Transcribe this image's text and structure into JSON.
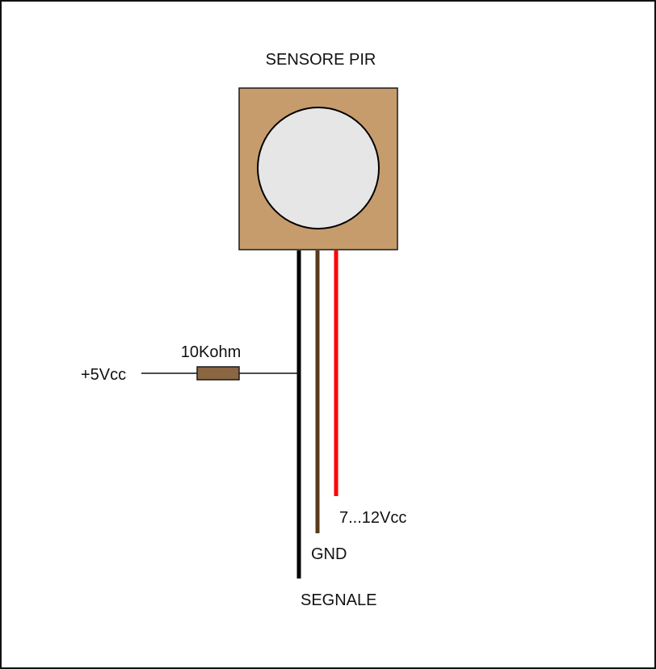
{
  "diagram": {
    "title": "SENSORE PIR",
    "resistor_label": "10Kohm",
    "pullup_supply_label": "+5Vcc",
    "wires": {
      "signal": {
        "label": "SEGNALE",
        "color": "#000000"
      },
      "ground": {
        "label": "GND",
        "color": "#5a3a1a"
      },
      "power": {
        "label": "7...12Vcc",
        "color": "#ff0000"
      }
    },
    "colors": {
      "sensor_body": "#c69c6d",
      "sensor_lens": "#e6e6e6",
      "resistor_body": "#8a6642",
      "frame": "#111111"
    }
  }
}
